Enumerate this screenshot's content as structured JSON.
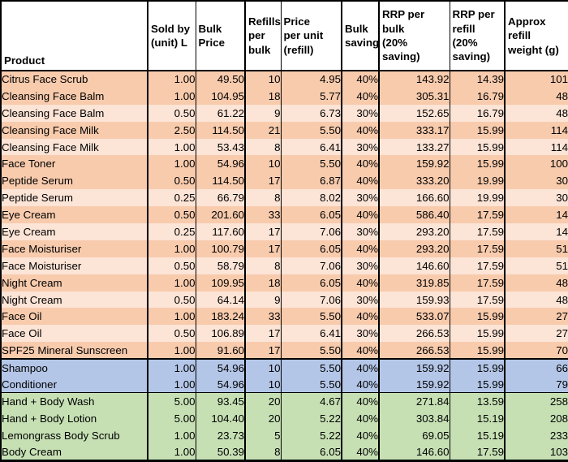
{
  "colors": {
    "grid_line": "#000000",
    "header_bg": "#FFFFFF",
    "peach_dark": "#F8CBAD",
    "peach_light": "#FCE4D6",
    "blue": "#B4C6E7",
    "green": "#C6E0B4"
  },
  "table": {
    "columns": [
      {
        "key": "product",
        "label": "Product",
        "width": 181,
        "align": "txt",
        "border": "none"
      },
      {
        "key": "sold_by",
        "label": "Sold by\n(unit) L",
        "width": 59,
        "align": "num",
        "border": "thick"
      },
      {
        "key": "bulk_price",
        "label": "Bulk\nPrice",
        "width": 61,
        "align": "num",
        "border": "thin"
      },
      {
        "key": "refills",
        "label": "Refills\nper\nbulk",
        "width": 44,
        "align": "num",
        "border": "thick"
      },
      {
        "key": "price_unit",
        "label": "Price\nper unit\n(refill)",
        "width": 75,
        "align": "num",
        "border": "thin"
      },
      {
        "key": "saving",
        "label": "Bulk\nsaving",
        "width": 46,
        "align": "num",
        "border": "thick"
      },
      {
        "key": "rrp_bulk",
        "label": "RRP per\nbulk\n(20%\nsaving)",
        "width": 87,
        "align": "num",
        "border": "thick"
      },
      {
        "key": "rrp_refill",
        "label": "RRP per\nrefill\n(20%\nsaving)",
        "width": 68,
        "align": "num",
        "border": "thin"
      },
      {
        "key": "weight",
        "label": "Approx\nrefill\nweight (g)",
        "width": 79,
        "align": "num",
        "border": "thick"
      }
    ],
    "rows": [
      {
        "band": "peach-dark",
        "divider": "none",
        "cells": [
          "Citrus Face Scrub",
          "1.00",
          "49.50",
          "10",
          "4.95",
          "40%",
          "143.92",
          "14.39",
          "101"
        ]
      },
      {
        "band": "peach-dark",
        "divider": "none",
        "cells": [
          "Cleansing Face Balm",
          "1.00",
          "104.95",
          "18",
          "5.77",
          "40%",
          "305.31",
          "16.79",
          "48"
        ]
      },
      {
        "band": "peach-light",
        "divider": "none",
        "cells": [
          "Cleansing Face Balm",
          "0.50",
          "61.22",
          "9",
          "6.73",
          "30%",
          "152.65",
          "16.79",
          "48"
        ]
      },
      {
        "band": "peach-dark",
        "divider": "none",
        "cells": [
          "Cleansing Face Milk",
          "2.50",
          "114.50",
          "21",
          "5.50",
          "40%",
          "333.17",
          "15.99",
          "114"
        ]
      },
      {
        "band": "peach-light",
        "divider": "none",
        "cells": [
          "Cleansing Face Milk",
          "1.00",
          "53.43",
          "8",
          "6.41",
          "30%",
          "133.27",
          "15.99",
          "114"
        ]
      },
      {
        "band": "peach-dark",
        "divider": "none",
        "cells": [
          "Face Toner",
          "1.00",
          "54.96",
          "10",
          "5.50",
          "40%",
          "159.92",
          "15.99",
          "100"
        ]
      },
      {
        "band": "peach-dark",
        "divider": "none",
        "cells": [
          "Peptide Serum",
          "0.50",
          "114.50",
          "17",
          "6.87",
          "40%",
          "333.20",
          "19.99",
          "30"
        ]
      },
      {
        "band": "peach-light",
        "divider": "none",
        "cells": [
          "Peptide Serum",
          "0.25",
          "66.79",
          "8",
          "8.02",
          "30%",
          "166.60",
          "19.99",
          "30"
        ]
      },
      {
        "band": "peach-dark",
        "divider": "none",
        "cells": [
          "Eye Cream",
          "0.50",
          "201.60",
          "33",
          "6.05",
          "40%",
          "586.40",
          "17.59",
          "14"
        ]
      },
      {
        "band": "peach-light",
        "divider": "none",
        "cells": [
          "Eye Cream",
          "0.25",
          "117.60",
          "17",
          "7.06",
          "30%",
          "293.20",
          "17.59",
          "14"
        ]
      },
      {
        "band": "peach-dark",
        "divider": "none",
        "cells": [
          "Face Moisturiser",
          "1.00",
          "100.79",
          "17",
          "6.05",
          "40%",
          "293.20",
          "17.59",
          "51"
        ]
      },
      {
        "band": "peach-light",
        "divider": "none",
        "cells": [
          "Face Moisturiser",
          "0.50",
          "58.79",
          "8",
          "7.06",
          "30%",
          "146.60",
          "17.59",
          "51"
        ]
      },
      {
        "band": "peach-dark",
        "divider": "none",
        "cells": [
          "Night Cream",
          "1.00",
          "109.95",
          "18",
          "6.05",
          "40%",
          "319.85",
          "17.59",
          "48"
        ]
      },
      {
        "band": "peach-light",
        "divider": "none",
        "cells": [
          "Night Cream",
          "0.50",
          "64.14",
          "9",
          "7.06",
          "30%",
          "159.93",
          "17.59",
          "48"
        ]
      },
      {
        "band": "peach-dark",
        "divider": "none",
        "cells": [
          "Face Oil",
          "1.00",
          "183.24",
          "33",
          "5.50",
          "40%",
          "533.07",
          "15.99",
          "27"
        ]
      },
      {
        "band": "peach-light",
        "divider": "none",
        "cells": [
          "Face Oil",
          "0.50",
          "106.89",
          "17",
          "6.41",
          "30%",
          "266.53",
          "15.99",
          "27"
        ]
      },
      {
        "band": "peach-dark",
        "divider": "none",
        "cells": [
          "SPF25 Mineral Sunscreen",
          "1.00",
          "91.60",
          "17",
          "5.50",
          "40%",
          "266.53",
          "15.99",
          "70"
        ]
      },
      {
        "band": "blue",
        "divider": "thick",
        "cells": [
          "Shampoo",
          "1.00",
          "54.96",
          "10",
          "5.50",
          "40%",
          "159.92",
          "15.99",
          "66"
        ]
      },
      {
        "band": "blue",
        "divider": "none",
        "cells": [
          "Conditioner",
          "1.00",
          "54.96",
          "10",
          "5.50",
          "40%",
          "159.92",
          "15.99",
          "79"
        ]
      },
      {
        "band": "green",
        "divider": "thin",
        "cells": [
          "Hand + Body Wash",
          "5.00",
          "93.45",
          "20",
          "4.67",
          "40%",
          "271.84",
          "13.59",
          "258"
        ]
      },
      {
        "band": "green",
        "divider": "none",
        "cells": [
          "Hand + Body Lotion",
          "5.00",
          "104.40",
          "20",
          "5.22",
          "40%",
          "303.84",
          "15.19",
          "208"
        ]
      },
      {
        "band": "green",
        "divider": "none",
        "cells": [
          "Lemongrass Body Scrub",
          "1.00",
          "23.73",
          "5",
          "5.22",
          "40%",
          "69.05",
          "15.19",
          "233"
        ]
      },
      {
        "band": "green",
        "divider": "none",
        "cells": [
          "Body Cream",
          "1.00",
          "50.39",
          "8",
          "6.05",
          "40%",
          "146.60",
          "17.59",
          "103"
        ]
      }
    ]
  }
}
